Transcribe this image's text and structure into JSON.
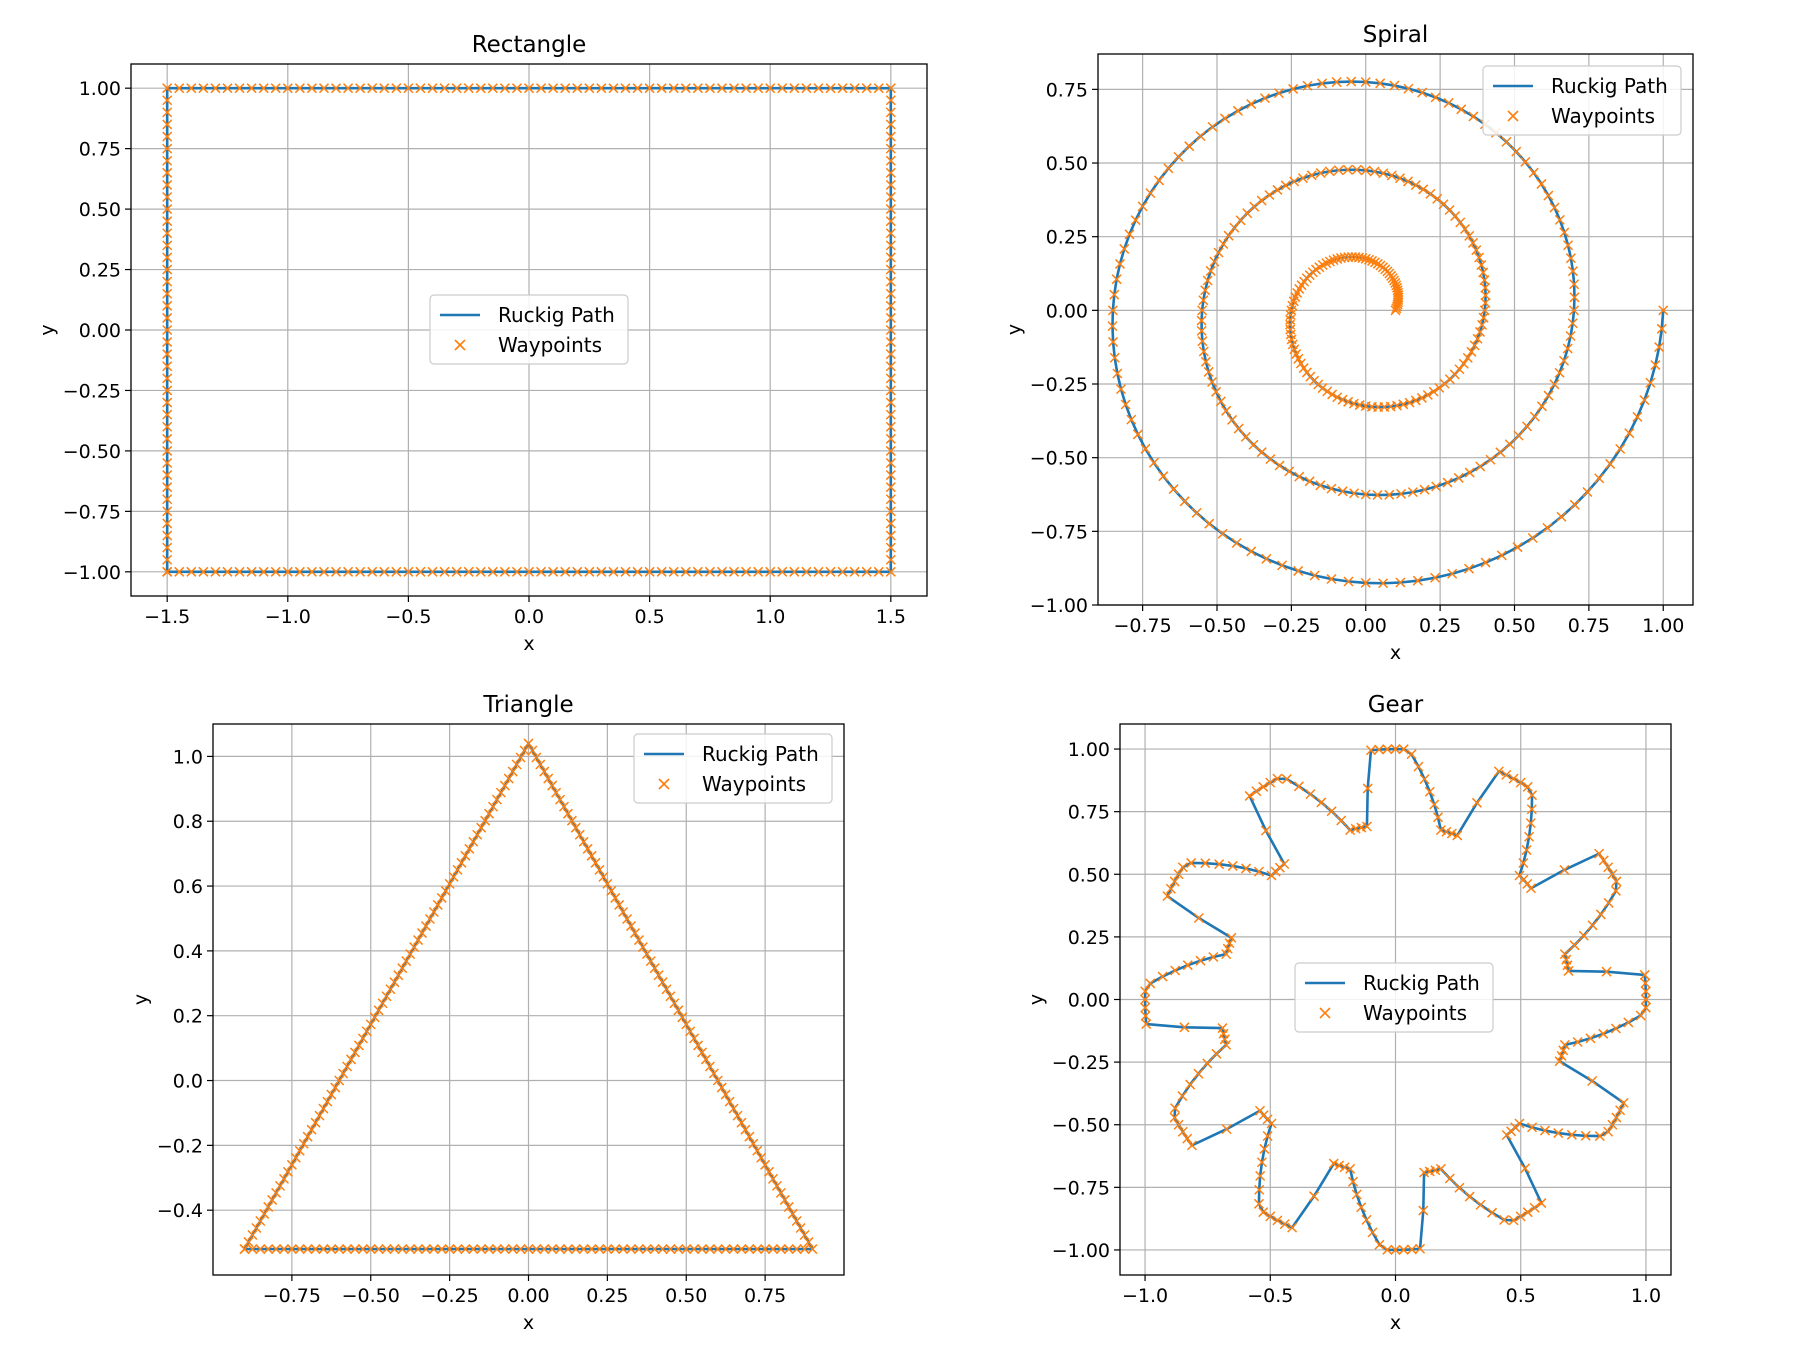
{
  "chart_data": [
    {
      "type": "line",
      "title": "Rectangle",
      "xlabel": "x",
      "ylabel": "y",
      "xlim": [
        -1.65,
        1.65
      ],
      "ylim": [
        -1.1,
        1.1
      ],
      "xticks": [
        -1.5,
        -1.0,
        -0.5,
        0.0,
        0.5,
        1.0,
        1.5
      ],
      "xtick_labels": [
        "−1.5",
        "−1.0",
        "−0.5",
        "0.0",
        "0.5",
        "1.0",
        "1.5"
      ],
      "yticks": [
        -1.0,
        -0.75,
        -0.5,
        -0.25,
        0.0,
        0.25,
        0.5,
        0.75,
        1.0
      ],
      "ytick_labels": [
        "−1.00",
        "−0.75",
        "−0.50",
        "−0.25",
        "0.00",
        "0.25",
        "0.50",
        "0.75",
        "1.00"
      ],
      "grid": true,
      "legend": "center",
      "shape": {
        "kind": "rectangle",
        "corners": [
          [
            -1.5,
            -1.0
          ],
          [
            1.5,
            -1.0
          ],
          [
            1.5,
            1.0
          ],
          [
            -1.5,
            1.0
          ]
        ],
        "waypoint_spacing": 0.05
      },
      "series": [
        {
          "name": "Ruckig Path",
          "style": "line",
          "color": "#1f77b4"
        },
        {
          "name": "Waypoints",
          "style": "x-marker",
          "color": "#ff7f0e"
        }
      ]
    },
    {
      "type": "line",
      "title": "Spiral",
      "xlabel": "x",
      "ylabel": "y",
      "xlim": [
        -0.9,
        1.1
      ],
      "ylim": [
        -1.0,
        0.87
      ],
      "xticks": [
        -0.75,
        -0.5,
        -0.25,
        0.0,
        0.25,
        0.5,
        0.75,
        1.0
      ],
      "xtick_labels": [
        "−0.75",
        "−0.50",
        "−0.25",
        "0.00",
        "0.25",
        "0.50",
        "0.75",
        "1.00"
      ],
      "yticks": [
        -1.0,
        -0.75,
        -0.5,
        -0.25,
        0.0,
        0.25,
        0.5,
        0.75
      ],
      "ytick_labels": [
        "−1.00",
        "−0.75",
        "−0.50",
        "−0.25",
        "0.00",
        "0.25",
        "0.50",
        "0.75"
      ],
      "grid": true,
      "legend": "upper right",
      "shape": {
        "kind": "spiral",
        "r_start": 0.1,
        "r_end": 1.0,
        "turns": 3,
        "waypoint_count": 300
      },
      "series": [
        {
          "name": "Ruckig Path",
          "style": "line",
          "color": "#1f77b4"
        },
        {
          "name": "Waypoints",
          "style": "x-marker",
          "color": "#ff7f0e"
        }
      ]
    },
    {
      "type": "line",
      "title": "Triangle",
      "xlabel": "x",
      "ylabel": "y",
      "xlim": [
        -1.0,
        1.0
      ],
      "ylim": [
        -0.6,
        1.1
      ],
      "xticks": [
        -0.75,
        -0.5,
        -0.25,
        0.0,
        0.25,
        0.5,
        0.75
      ],
      "xtick_labels": [
        "−0.75",
        "−0.50",
        "−0.25",
        "0.00",
        "0.25",
        "0.50",
        "0.75"
      ],
      "yticks": [
        -0.4,
        -0.2,
        0.0,
        0.2,
        0.4,
        0.6,
        0.8,
        1.0
      ],
      "ytick_labels": [
        "−0.4",
        "−0.2",
        "0.0",
        "0.2",
        "0.4",
        "0.6",
        "0.8",
        "1.0"
      ],
      "grid": true,
      "legend": "upper right",
      "shape": {
        "kind": "triangle",
        "corners": [
          [
            -0.9,
            -0.52
          ],
          [
            0.9,
            -0.52
          ],
          [
            0.0,
            1.04
          ]
        ],
        "waypoint_spacing": 0.025
      },
      "series": [
        {
          "name": "Ruckig Path",
          "style": "line",
          "color": "#1f77b4"
        },
        {
          "name": "Waypoints",
          "style": "x-marker",
          "color": "#ff7f0e"
        }
      ]
    },
    {
      "type": "line",
      "title": "Gear",
      "xlabel": "x",
      "ylabel": "y",
      "xlim": [
        -1.1,
        1.1
      ],
      "ylim": [
        -1.1,
        1.1
      ],
      "xticks": [
        -1.0,
        -0.5,
        0.0,
        0.5,
        1.0
      ],
      "xtick_labels": [
        "−1.0",
        "−0.5",
        "0.0",
        "0.5",
        "1.0"
      ],
      "yticks": [
        -1.0,
        -0.75,
        -0.5,
        -0.25,
        0.0,
        0.25,
        0.5,
        0.75,
        1.0
      ],
      "ytick_labels": [
        "−1.00",
        "−0.75",
        "−0.50",
        "−0.25",
        "0.00",
        "0.25",
        "0.50",
        "0.75",
        "1.00"
      ],
      "grid": true,
      "legend": "center",
      "shape": {
        "kind": "gear",
        "teeth": 12,
        "outer_radius": 1.0,
        "inner_radius": 0.7,
        "waypoints_per_tooth": 16
      },
      "series": [
        {
          "name": "Ruckig Path",
          "style": "line",
          "color": "#1f77b4"
        },
        {
          "name": "Waypoints",
          "style": "x-marker",
          "color": "#ff7f0e"
        }
      ]
    }
  ]
}
